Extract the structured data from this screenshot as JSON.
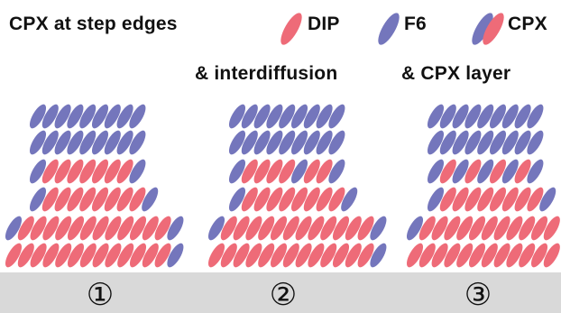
{
  "titles": {
    "left": "CPX at step edges",
    "middle": "& interdiffusion",
    "right": "& CPX layer"
  },
  "legend": [
    {
      "label": "DIP",
      "color": "#ee6b78",
      "icon": "red-ellipse"
    },
    {
      "label": "F6",
      "color": "#7476bc",
      "icon": "blue-ellipse"
    },
    {
      "label": "CPX",
      "colors": [
        "#7476bc",
        "#ee6b78"
      ],
      "icon": "blue-red-pair"
    }
  ],
  "substrate": {
    "color": "#d9d9d9"
  },
  "steps": [
    "①",
    "②",
    "③"
  ]
}
